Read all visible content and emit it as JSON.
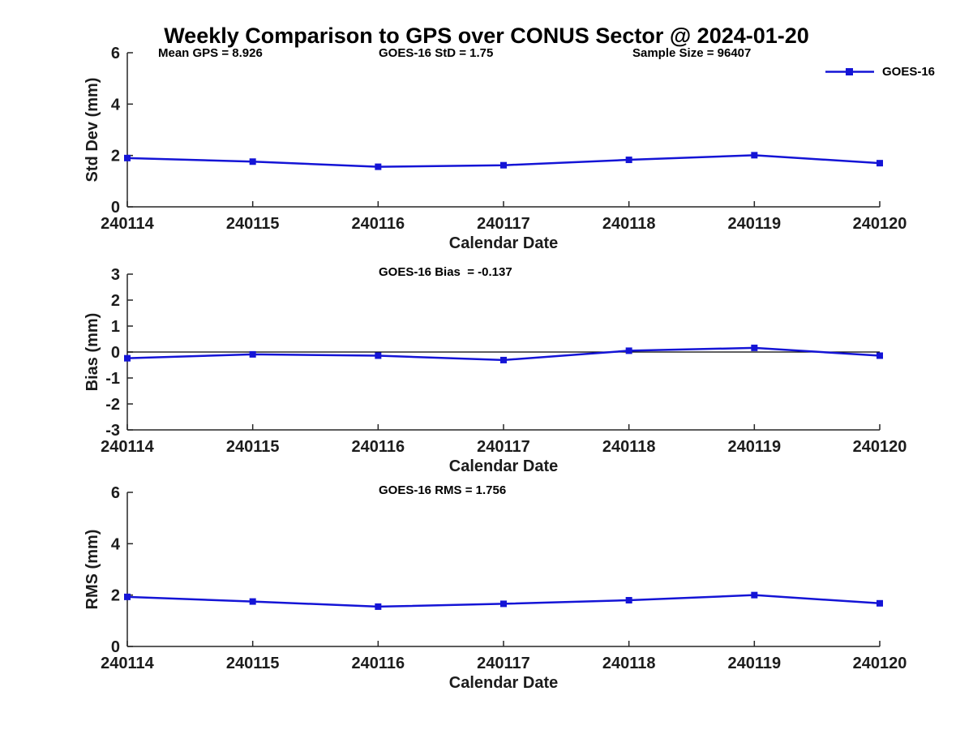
{
  "title": "Weekly Comparison to GPS over CONUS Sector @ 2024-01-20",
  "header_annotations": {
    "mean_gps": "Mean GPS = 8.926",
    "goes16_std": "GOES-16 StD = 1.75",
    "sample_size": "Sample Size = 96407"
  },
  "legend": {
    "label": "GOES-16"
  },
  "colors": {
    "line": "#1414d6",
    "axis": "#262626",
    "zero_line": "#000000",
    "text": "#1c1c1c"
  },
  "chart_data": [
    {
      "type": "line",
      "name": "stddev",
      "series_name": "GOES-16",
      "ylabel": "Std Dev (mm)",
      "xlabel": "Calendar Date",
      "categories": [
        "240114",
        "240115",
        "240116",
        "240117",
        "240118",
        "240119",
        "240120"
      ],
      "values": [
        1.9,
        1.76,
        1.56,
        1.62,
        1.83,
        2.01,
        1.7
      ],
      "ylim": [
        0,
        6
      ],
      "yticks": [
        0,
        2,
        4,
        6
      ],
      "zero_line": false,
      "annotation": "",
      "marker": "square",
      "grid": false,
      "legend_position": "top-right"
    },
    {
      "type": "line",
      "name": "bias",
      "series_name": "GOES-16",
      "annotation": "GOES-16 Bias  = -0.137",
      "ylabel": "Bias (mm)",
      "xlabel": "Calendar Date",
      "categories": [
        "240114",
        "240115",
        "240116",
        "240117",
        "240118",
        "240119",
        "240120"
      ],
      "values": [
        -0.24,
        -0.09,
        -0.14,
        -0.31,
        0.05,
        0.16,
        -0.14
      ],
      "ylim": [
        -3,
        3
      ],
      "yticks": [
        -3,
        -2,
        -1,
        0,
        1,
        2,
        3
      ],
      "zero_line": true,
      "marker": "square",
      "grid": false
    },
    {
      "type": "line",
      "name": "rms",
      "series_name": "GOES-16",
      "annotation": "GOES-16 RMS = 1.756",
      "ylabel": "RMS (mm)",
      "xlabel": "Calendar Date",
      "categories": [
        "240114",
        "240115",
        "240116",
        "240117",
        "240118",
        "240119",
        "240120"
      ],
      "values": [
        1.93,
        1.75,
        1.55,
        1.66,
        1.8,
        2.0,
        1.68
      ],
      "ylim": [
        0,
        6
      ],
      "yticks": [
        0,
        2,
        4,
        6
      ],
      "zero_line": false,
      "marker": "square",
      "grid": false
    }
  ]
}
